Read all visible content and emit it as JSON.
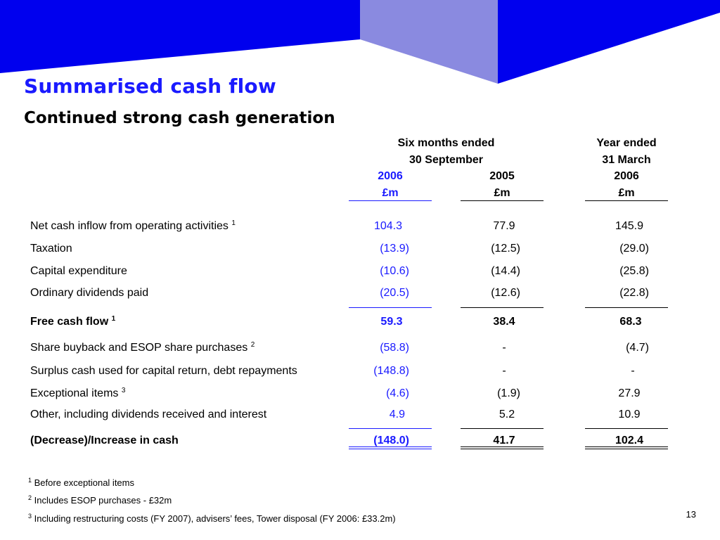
{
  "slide": {
    "title": "Summarised cash flow",
    "subtitle": "Continued strong cash generation",
    "page_number": "13"
  },
  "colors": {
    "accent": "#1a1aff",
    "text": "#000000"
  },
  "table": {
    "headers": {
      "group1_line1": "Six months ended",
      "group1_line2": "30 September",
      "group2_line1": "Year ended",
      "group2_line2": "31 March",
      "years": [
        "2006",
        "2005",
        "2006"
      ],
      "units": [
        "£m",
        "£m",
        "£m"
      ]
    },
    "rows": [
      {
        "label": "Net cash inflow from operating activities",
        "sup": "1",
        "values": [
          "104.3",
          "77.9",
          "145.9"
        ]
      },
      {
        "label": "Taxation",
        "sup": "",
        "values": [
          "(13.9)",
          "(12.5)",
          "(29.0)"
        ]
      },
      {
        "label": "Capital expenditure",
        "sup": "",
        "values": [
          "(10.6)",
          "(14.4)",
          "(25.8)"
        ]
      },
      {
        "label": "Ordinary dividends paid",
        "sup": "",
        "values": [
          "(20.5)",
          "(12.6)",
          "(22.8)"
        ]
      },
      {
        "label": "Free cash flow",
        "sup": "1",
        "values": [
          "59.3",
          "38.4",
          "68.3"
        ]
      },
      {
        "label": "Share buyback and ESOP share purchases",
        "sup": "2",
        "values": [
          "(58.8)",
          "-",
          "(4.7)"
        ]
      },
      {
        "label": "Surplus cash used for capital return, debt repayments",
        "sup": "",
        "values": [
          "(148.8)",
          "-",
          "-"
        ]
      },
      {
        "label": "Exceptional items",
        "sup": "3",
        "values": [
          "(4.6)",
          "(1.9)",
          "27.9"
        ]
      },
      {
        "label": "Other, including dividends received and interest",
        "sup": "",
        "values": [
          "4.9",
          "5.2",
          "10.9"
        ]
      },
      {
        "label": "(Decrease)/Increase in cash",
        "sup": "",
        "values": [
          "(148.0)",
          "41.7",
          "102.4"
        ]
      }
    ]
  },
  "footnotes": [
    {
      "marker": "1",
      "text": "Before exceptional items"
    },
    {
      "marker": "2",
      "text": "Includes ESOP purchases - £32m"
    },
    {
      "marker": "3",
      "text": "Including restructuring costs (FY 2007), advisers’ fees, Tower disposal (FY 2006: £33.2m)"
    }
  ]
}
